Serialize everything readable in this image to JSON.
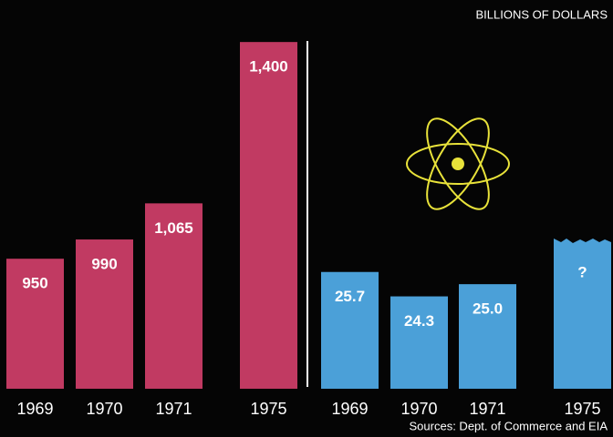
{
  "title": "BILLIONS OF DOLLARS",
  "source": "Sources: Dept. of Commerce and EIA",
  "chart_data": [
    {
      "type": "bar",
      "categories": [
        "1969",
        "1970",
        "1971",
        "1975"
      ],
      "values": [
        950,
        990,
        1065,
        1400
      ],
      "value_labels": [
        "950",
        "990",
        "1,065",
        "1,400"
      ],
      "color": "#c13a62",
      "ylim": [
        680,
        1440
      ]
    },
    {
      "type": "bar",
      "categories": [
        "1969",
        "1970",
        "1971",
        "1975"
      ],
      "values": [
        25.7,
        24.3,
        25.0,
        null
      ],
      "value_labels": [
        "25.7",
        "24.3",
        "25.0",
        "?"
      ],
      "color": "#4ba0d8",
      "ylim": [
        19,
        40
      ]
    }
  ]
}
